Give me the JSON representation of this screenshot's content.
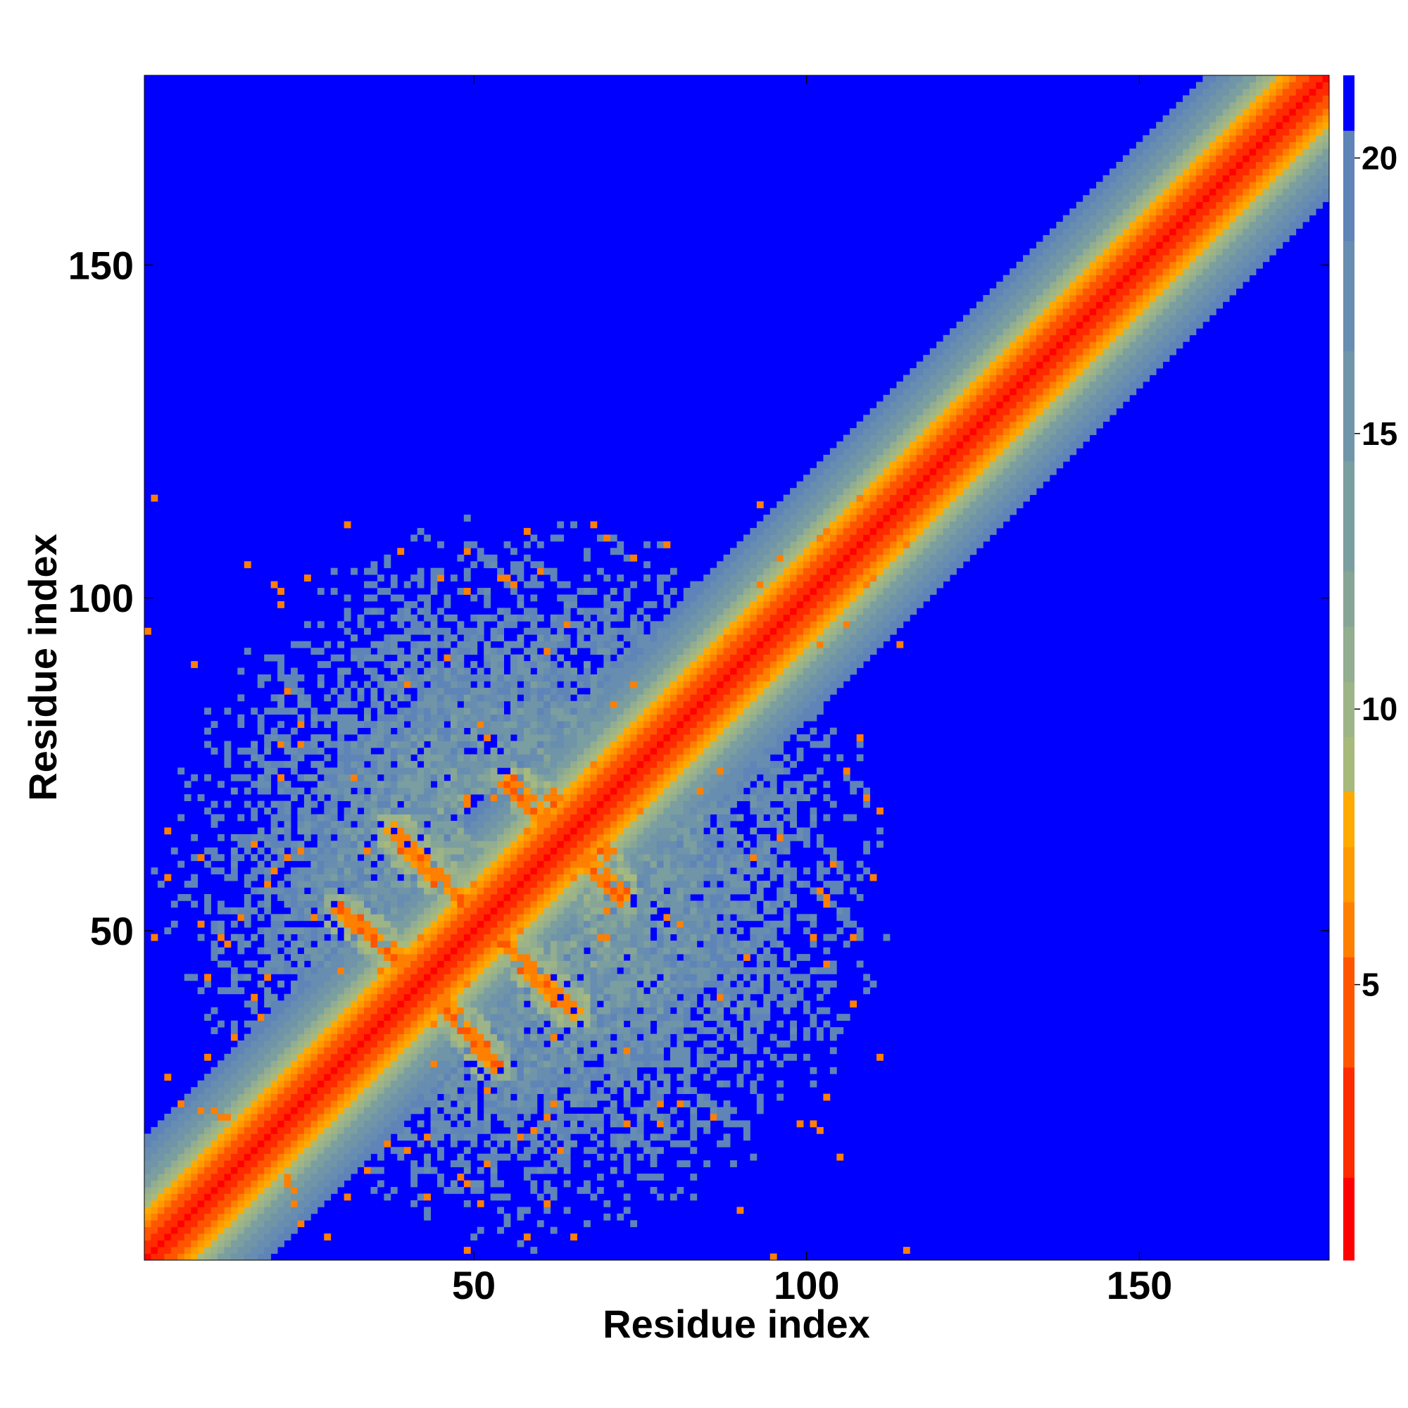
{
  "chart_data": {
    "type": "heatmap",
    "title": "",
    "xlabel": "Residue index",
    "ylabel": "Residue index",
    "n_residues": 178,
    "xlim": [
      1,
      178
    ],
    "ylim": [
      1,
      178
    ],
    "x_ticks": [
      50,
      100,
      150
    ],
    "y_ticks": [
      50,
      100,
      150
    ],
    "x_tick_labels": [
      "50",
      "100",
      "150"
    ],
    "y_tick_labels": [
      "50",
      "100",
      "150"
    ],
    "colorbar": {
      "range": [
        0,
        21.5
      ],
      "ticks": [
        5,
        10,
        15,
        20
      ],
      "tick_labels": [
        "5",
        "10",
        "15",
        "20"
      ],
      "placement": "right"
    },
    "colorscale": [
      {
        "max": 1.5,
        "color": "#ff0000"
      },
      {
        "max": 3.5,
        "color": "#ff2a00"
      },
      {
        "max": 5.5,
        "color": "#ff5500"
      },
      {
        "max": 6.5,
        "color": "#ff7f00"
      },
      {
        "max": 7.5,
        "color": "#ff9900"
      },
      {
        "max": 8.5,
        "color": "#ffaa00"
      },
      {
        "max": 9.5,
        "color": "#a8b97c"
      },
      {
        "max": 10.5,
        "color": "#9db488"
      },
      {
        "max": 11.5,
        "color": "#92ad8f"
      },
      {
        "max": 12.5,
        "color": "#86a597"
      },
      {
        "max": 14.5,
        "color": "#7b9ea0"
      },
      {
        "max": 16.5,
        "color": "#7095a8"
      },
      {
        "max": 18.5,
        "color": "#678db0"
      },
      {
        "max": 20.5,
        "color": "#5e84b8"
      },
      {
        "max": 99,
        "color": "#0000ff"
      }
    ],
    "description_of_values": "Pairwise residue distance matrix; diagonal band of near contacts along full chain, plus a compact folded domain spanning residues ~1-115 with off-diagonal contacts.",
    "diagonal_band_halfwidth": 10,
    "folded_domain": {
      "range": [
        1,
        115
      ],
      "center": [
        58,
        58
      ]
    },
    "contact_lines": [
      {
        "from": [
          40,
          62
        ],
        "to": [
          48,
          55
        ]
      },
      {
        "from": [
          48,
          55
        ],
        "to": [
          57,
          46
        ]
      },
      {
        "from": [
          57,
          46
        ],
        "to": [
          65,
          38
        ]
      },
      {
        "from": [
          30,
          53
        ],
        "to": [
          40,
          45
        ]
      },
      {
        "from": [
          40,
          45
        ],
        "to": [
          50,
          34
        ]
      },
      {
        "from": [
          55,
          72
        ],
        "to": [
          64,
          64
        ]
      },
      {
        "from": [
          64,
          64
        ],
        "to": [
          72,
          56
        ]
      },
      {
        "from": [
          62,
          70
        ],
        "to": [
          70,
          62
        ]
      }
    ]
  }
}
